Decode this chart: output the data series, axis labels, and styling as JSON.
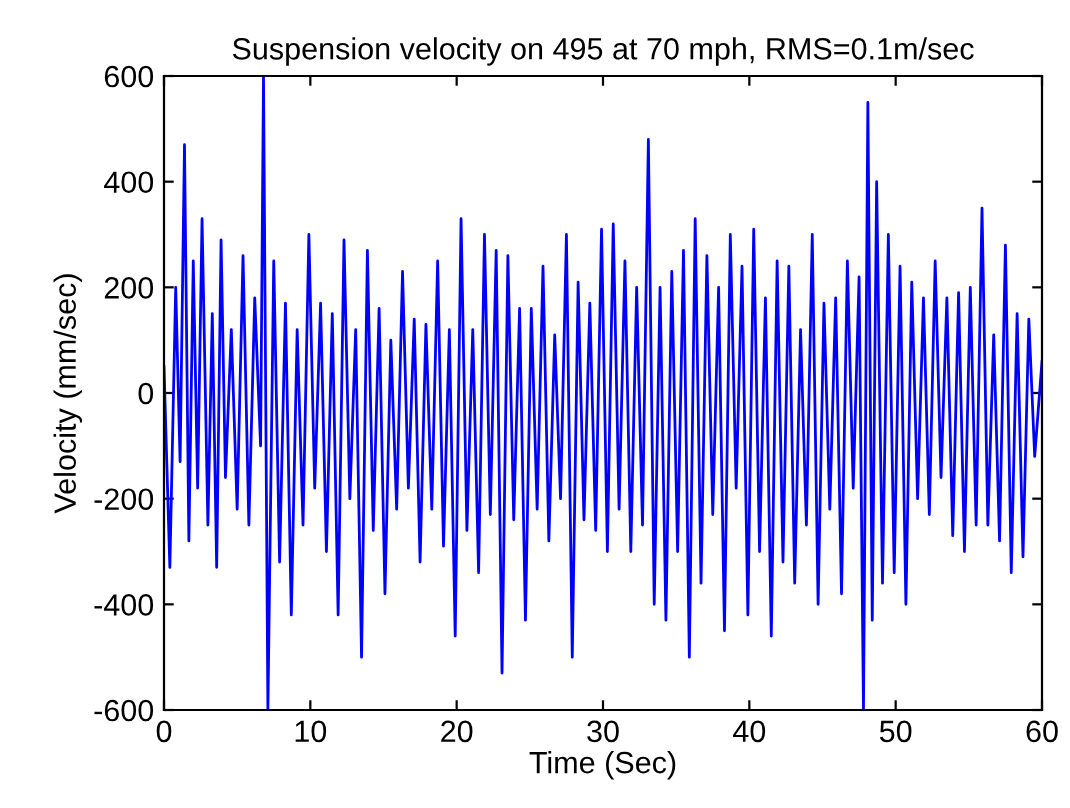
{
  "chart_data": {
    "type": "line",
    "title": "Suspension velocity on 495 at 70 mph, RMS=0.1m/sec",
    "xlabel": "Time (Sec)",
    "ylabel": "Velocity (mm/sec)",
    "xlim": [
      0,
      60
    ],
    "ylim": [
      -600,
      600
    ],
    "xticks": [
      0,
      10,
      20,
      30,
      40,
      50,
      60
    ],
    "yticks": [
      -600,
      -400,
      -200,
      0,
      200,
      400,
      600
    ],
    "grid": false,
    "marker": "none",
    "line_style": "solid",
    "series": [
      {
        "color": "#0000ff",
        "x": [
          0,
          0.4,
          0.8,
          1.1,
          1.4,
          1.7,
          2.0,
          2.3,
          2.6,
          3.0,
          3.3,
          3.6,
          3.9,
          4.2,
          4.6,
          5.0,
          5.4,
          5.8,
          6.2,
          6.6,
          6.8,
          7.1,
          7.5,
          7.9,
          8.3,
          8.7,
          9.1,
          9.5,
          9.9,
          10.3,
          10.7,
          11.1,
          11.5,
          11.9,
          12.3,
          12.7,
          13.1,
          13.5,
          13.9,
          14.3,
          14.7,
          15.1,
          15.5,
          15.9,
          16.3,
          16.7,
          17.1,
          17.5,
          17.9,
          18.3,
          18.7,
          19.1,
          19.5,
          19.9,
          20.3,
          20.7,
          21.1,
          21.5,
          21.9,
          22.3,
          22.7,
          23.1,
          23.5,
          23.9,
          24.3,
          24.7,
          25.1,
          25.5,
          25.9,
          26.3,
          26.7,
          27.1,
          27.5,
          27.9,
          28.3,
          28.7,
          29.1,
          29.5,
          29.9,
          30.3,
          30.7,
          31.1,
          31.5,
          31.9,
          32.3,
          32.7,
          33.1,
          33.5,
          33.9,
          34.3,
          34.7,
          35.1,
          35.5,
          35.9,
          36.3,
          36.7,
          37.1,
          37.5,
          37.9,
          38.3,
          38.7,
          39.1,
          39.5,
          39.9,
          40.3,
          40.7,
          41.1,
          41.5,
          41.9,
          42.3,
          42.7,
          43.1,
          43.5,
          43.9,
          44.3,
          44.7,
          45.1,
          45.5,
          45.9,
          46.3,
          46.7,
          47.1,
          47.5,
          47.8,
          48.1,
          48.4,
          48.7,
          49.1,
          49.5,
          49.9,
          50.3,
          50.7,
          51.1,
          51.5,
          51.9,
          52.3,
          52.7,
          53.1,
          53.5,
          53.9,
          54.3,
          54.7,
          55.1,
          55.5,
          55.9,
          56.3,
          56.7,
          57.1,
          57.5,
          57.9,
          58.3,
          58.7,
          59.1,
          59.5,
          60
        ],
        "values": [
          50,
          -330,
          200,
          -130,
          470,
          -280,
          250,
          -180,
          330,
          -250,
          150,
          -330,
          290,
          -160,
          120,
          -220,
          260,
          -250,
          180,
          -100,
          600,
          -600,
          250,
          -320,
          170,
          -420,
          120,
          -250,
          300,
          -180,
          170,
          -300,
          150,
          -420,
          290,
          -200,
          120,
          -500,
          270,
          -260,
          160,
          -380,
          100,
          -220,
          230,
          -180,
          140,
          -320,
          130,
          -220,
          250,
          -290,
          120,
          -460,
          330,
          -260,
          120,
          -340,
          300,
          -230,
          270,
          -530,
          260,
          -240,
          160,
          -430,
          160,
          -220,
          240,
          -280,
          110,
          -200,
          300,
          -500,
          210,
          -240,
          170,
          -260,
          310,
          -300,
          320,
          -220,
          250,
          -300,
          200,
          -250,
          480,
          -400,
          200,
          -430,
          230,
          -300,
          270,
          -500,
          330,
          -360,
          260,
          -230,
          200,
          -450,
          300,
          -180,
          240,
          -420,
          310,
          -300,
          180,
          -460,
          250,
          -320,
          240,
          -360,
          120,
          -250,
          300,
          -400,
          170,
          -220,
          180,
          -380,
          250,
          -180,
          220,
          -600,
          550,
          -430,
          400,
          -360,
          300,
          -340,
          240,
          -400,
          210,
          -200,
          180,
          -230,
          250,
          -160,
          180,
          -270,
          190,
          -300,
          200,
          -250,
          350,
          -250,
          110,
          -280,
          280,
          -340,
          150,
          -310,
          140,
          -120,
          60
        ]
      }
    ]
  }
}
